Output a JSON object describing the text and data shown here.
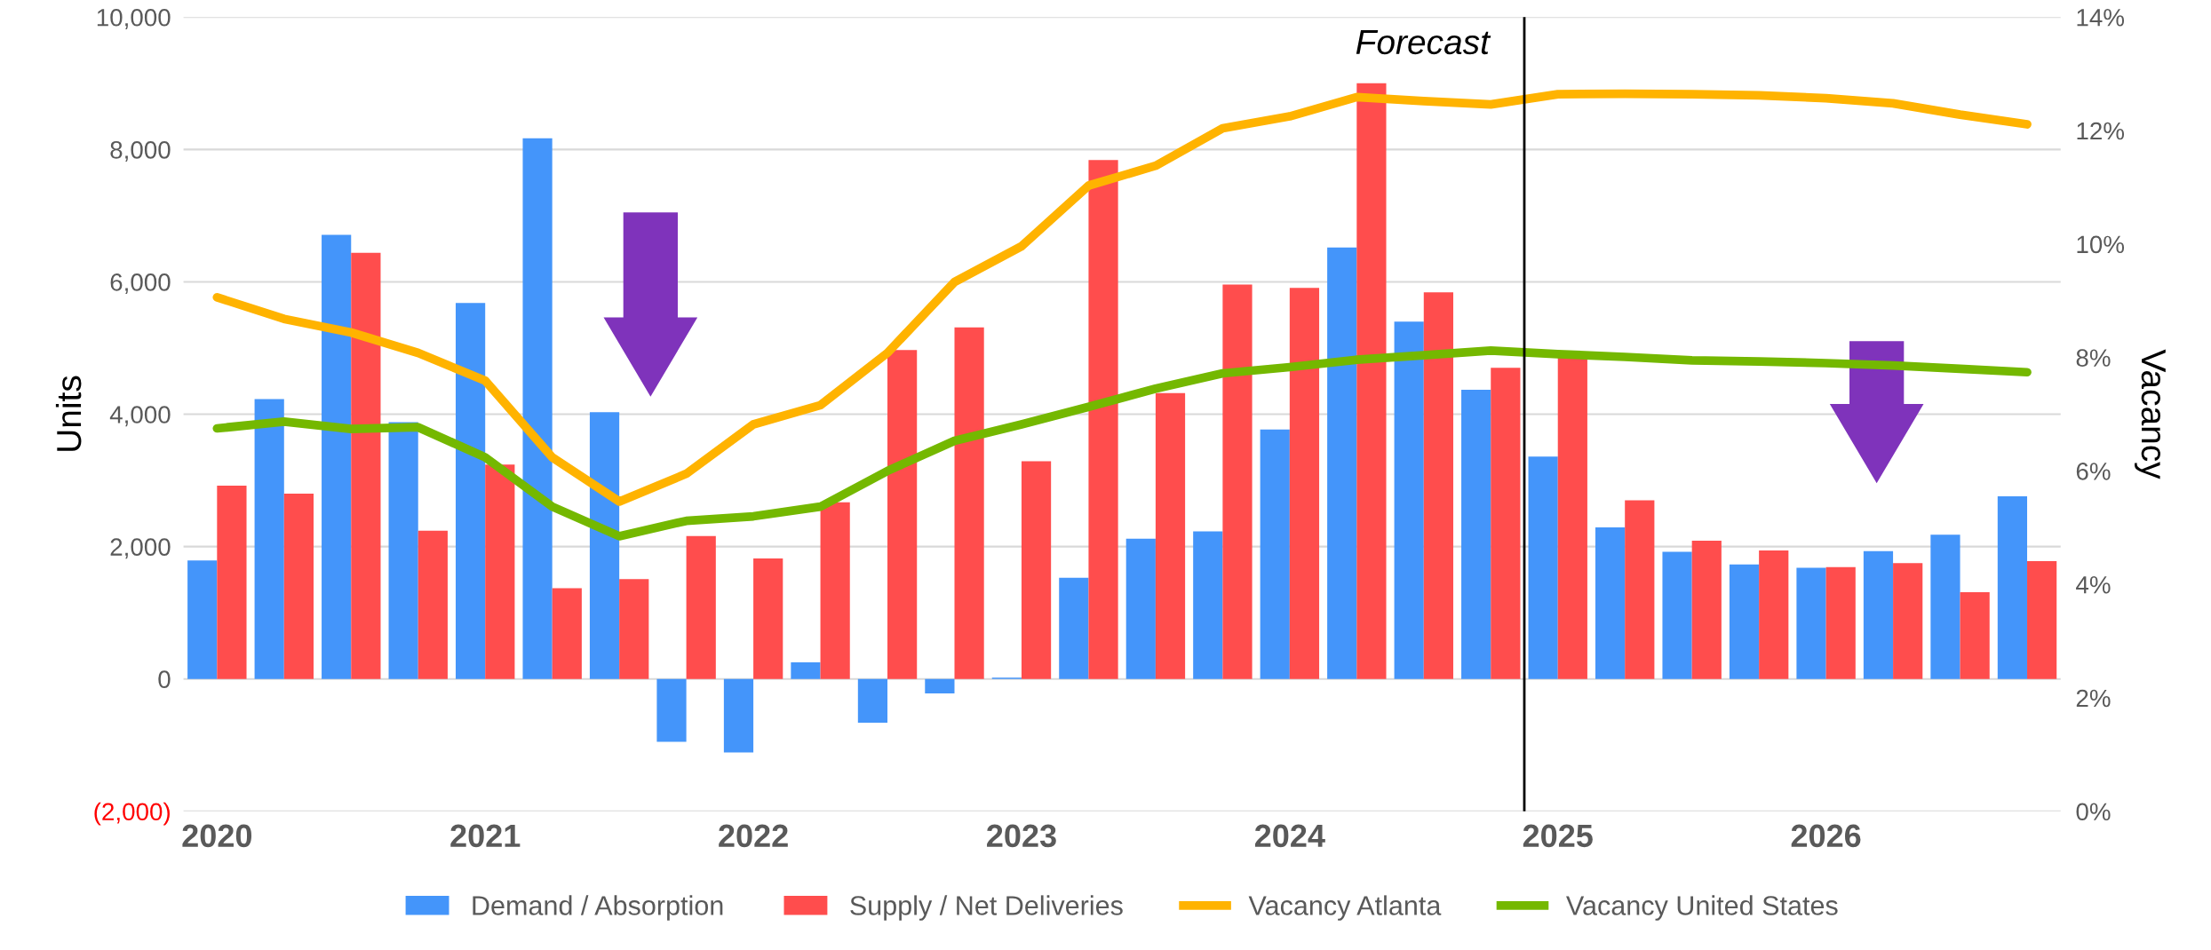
{
  "chart_data": {
    "type": "bar",
    "ylabel": "Units",
    "y2label": "Vacancy",
    "x": [
      2020.0,
      2020.25,
      2020.5,
      2020.75,
      2021.0,
      2021.25,
      2021.5,
      2021.75,
      2022.0,
      2022.25,
      2022.5,
      2022.75,
      2023.0,
      2023.25,
      2023.5,
      2023.75,
      2024.0,
      2024.25,
      2024.5,
      2024.75,
      2025.0,
      2025.25,
      2025.5,
      2025.75,
      2026.0,
      2026.25,
      2026.5,
      2026.75
    ],
    "xlim": [
      2019.875,
      2026.875
    ],
    "xticks": [
      2020,
      2021,
      2022,
      2023,
      2024,
      2025,
      2026
    ],
    "ylim": [
      -2000,
      10000
    ],
    "yticks": [
      {
        "value": -2000,
        "label": "(2,000)"
      },
      0,
      {
        "value": 2000,
        "label": "2,000"
      },
      {
        "value": 4000,
        "label": "4,000"
      },
      {
        "value": 6000,
        "label": "6,000"
      },
      {
        "value": 8000,
        "label": "8,000"
      },
      {
        "value": 10000,
        "label": "10,000"
      }
    ],
    "y2lim": [
      0,
      14
    ],
    "y2ticks": [
      {
        "value": 0,
        "label": "0%"
      },
      {
        "value": 2,
        "label": "2%"
      },
      {
        "value": 4,
        "label": "4%"
      },
      {
        "value": 6,
        "label": "6%"
      },
      {
        "value": 8,
        "label": "8%"
      },
      {
        "value": 10,
        "label": "10%"
      },
      {
        "value": 12,
        "label": "12%"
      },
      {
        "value": 14,
        "label": "14%"
      }
    ],
    "series": [
      {
        "name": "Demand / Absorption",
        "color": "#4495fa",
        "values": [
          1790,
          4230,
          6710,
          3880,
          5680,
          8170,
          4030,
          -950,
          -1110,
          250,
          -660,
          -220,
          20,
          1530,
          2120,
          2230,
          3770,
          6520,
          5400,
          4370,
          3360,
          2290,
          1920,
          1730,
          1680,
          1930,
          2180,
          2760
        ]
      },
      {
        "name": "Supply / Net Deliveries",
        "color": "#ff4d4d",
        "values": [
          2920,
          2800,
          6440,
          2240,
          3240,
          1370,
          1510,
          2160,
          1820,
          2670,
          4970,
          5310,
          3290,
          7840,
          4320,
          5960,
          5910,
          9000,
          5840,
          4700,
          4870,
          2700,
          2090,
          1940,
          1690,
          1750,
          1310,
          1780
        ]
      },
      {
        "name": "Vacancy Atlanta",
        "type": "line",
        "axis": "y2",
        "color": "#ffb300",
        "values": [
          9.06,
          8.68,
          8.44,
          8.08,
          7.59,
          6.24,
          5.46,
          5.95,
          6.82,
          7.16,
          8.08,
          9.33,
          9.96,
          11.03,
          11.38,
          12.04,
          12.25,
          12.59,
          12.52,
          12.46,
          12.64,
          12.65,
          12.64,
          12.62,
          12.57,
          12.48,
          12.28,
          12.11
        ]
      },
      {
        "name": "Vacancy United States",
        "type": "line",
        "axis": "y2",
        "color": "#74b800",
        "values": [
          6.75,
          6.87,
          6.74,
          6.77,
          6.24,
          5.37,
          4.85,
          5.12,
          5.2,
          5.37,
          6.0,
          6.53,
          6.82,
          7.13,
          7.45,
          7.72,
          7.83,
          7.96,
          8.04,
          8.12,
          8.06,
          8.01,
          7.95,
          7.93,
          7.9,
          7.86,
          7.8,
          7.74
        ]
      }
    ],
    "ref_lines": [
      {
        "axis": "x",
        "value": 2024.875,
        "color": "#000000"
      }
    ],
    "annotations": [
      "Forecast"
    ],
    "grid": "y",
    "legend": "bottom",
    "marker": "none",
    "line_style": "solid"
  }
}
